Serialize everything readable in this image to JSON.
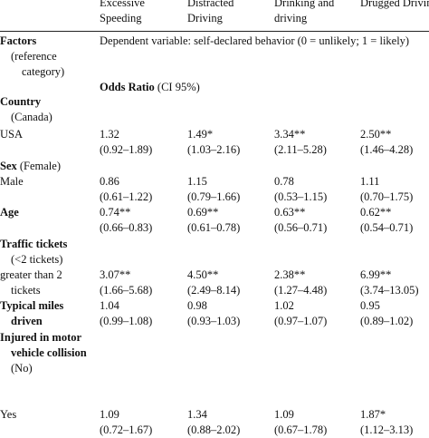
{
  "table": {
    "columns": [
      "Excessive Speeding",
      "Distracted Driving",
      "Drinking and driving",
      "Drugged Driving"
    ],
    "factors_label": "Factors",
    "reference_label": "(reference category)",
    "dependent_note": "Dependent variable: self-declared behavior (0 = unlikely; 1 = likely)",
    "measure": {
      "name": "Odds Ratio",
      "ci": "(CI 95%)"
    },
    "rows": [
      {
        "label": "Country",
        "ref": "(Canada)"
      },
      {
        "label": "USA",
        "cells": [
          {
            "or": "1.32",
            "ci": "(0.92–1.89)"
          },
          {
            "or": "1.49*",
            "ci": "(1.03–2.16)"
          },
          {
            "or": "3.34**",
            "ci": "(2.11–5.28)"
          },
          {
            "or": "2.50**",
            "ci": "(1.46–4.28)"
          }
        ]
      },
      {
        "label": "Sex",
        "ref": "(Female)"
      },
      {
        "label": "Male",
        "cells": [
          {
            "or": "0.86",
            "ci": "(0.61–1.22)"
          },
          {
            "or": "1.15",
            "ci": "(0.79–1.66)"
          },
          {
            "or": "0.78",
            "ci": "(0.53–1.15)"
          },
          {
            "or": "1.11",
            "ci": "(0.70–1.75)"
          }
        ]
      },
      {
        "label": "Age",
        "cells": [
          {
            "or": "0.74**",
            "ci": "(0.66–0.83)"
          },
          {
            "or": "0.69**",
            "ci": "(0.61–0.78)"
          },
          {
            "or": "0.63**",
            "ci": "(0.56–0.71)"
          },
          {
            "or": "0.62**",
            "ci": "(0.54–0.71)"
          }
        ]
      },
      {
        "label": "Traffic tickets",
        "ref": "(<2 tickets)"
      },
      {
        "label": "greater than 2 tickets",
        "cells": [
          {
            "or": "3.07**",
            "ci": "(1.66–5.68)"
          },
          {
            "or": "4.50**",
            "ci": "(2.49–8.14)"
          },
          {
            "or": "2.38**",
            "ci": "(1.27–4.48)"
          },
          {
            "or": "6.99**",
            "ci": "(3.74–13.05)"
          }
        ]
      },
      {
        "label": "Typical miles driven",
        "cells": [
          {
            "or": "1.04",
            "ci": "(0.99–1.08)"
          },
          {
            "or": "0.98",
            "ci": "(0.93–1.03)"
          },
          {
            "or": "1.02",
            "ci": "(0.97–1.07)"
          },
          {
            "or": "0.95",
            "ci": "(0.89–1.02)"
          }
        ]
      },
      {
        "label": "Injured in motor vehicle collision",
        "ref": "(No)"
      },
      {
        "label": "Yes",
        "cells": [
          {
            "or": "1.09",
            "ci": "(0.72–1.67)"
          },
          {
            "or": "1.34",
            "ci": "(0.88–2.02)"
          },
          {
            "or": "1.09",
            "ci": "(0.67–1.78)"
          },
          {
            "or": "1.87*",
            "ci": "(1.12–3.13)"
          }
        ]
      }
    ]
  }
}
